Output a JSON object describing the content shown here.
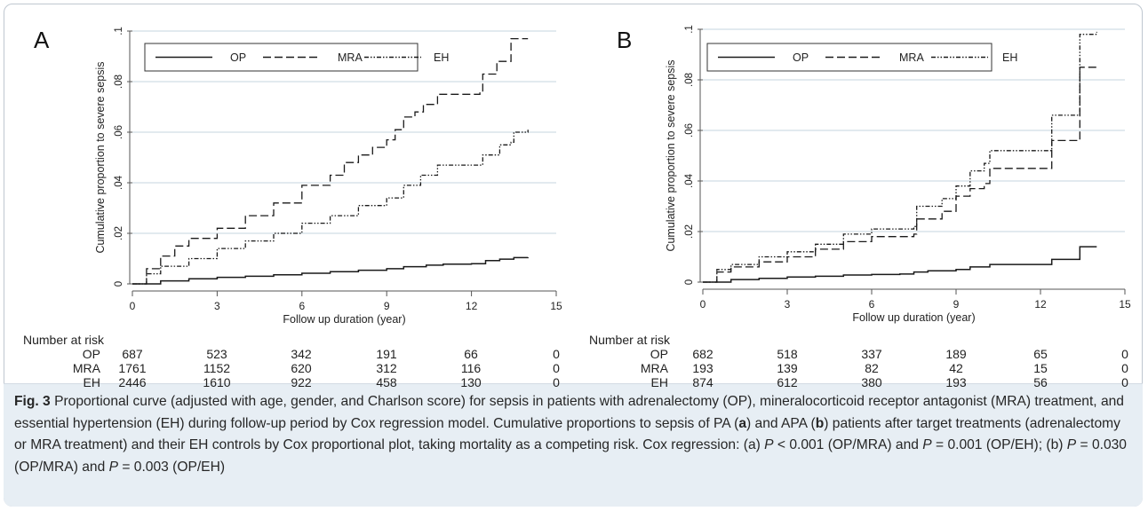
{
  "colors": {
    "line": "#1a1a1a",
    "grid": "#d9e4ea",
    "axis": "#555555",
    "caption_bg": "#e7eef4"
  },
  "chart_data": [
    {
      "panel_label": "A",
      "type": "line",
      "xlabel": "Follow up duration (year)",
      "ylabel": "Cumulative proportion to severe sepsis",
      "xlim": [
        0,
        15
      ],
      "ylim": [
        0,
        0.1
      ],
      "x_ticks": [
        "0",
        "3",
        "6",
        "9",
        "12",
        "15"
      ],
      "y_ticks": [
        "0",
        ".02",
        ".04",
        ".06",
        ".08",
        ".1"
      ],
      "grid": true,
      "legend_position": "top-left",
      "series": [
        {
          "name": "OP",
          "style": "solid",
          "points": [
            [
              0,
              0
            ],
            [
              1,
              0.0012
            ],
            [
              2,
              0.002
            ],
            [
              3,
              0.0026
            ],
            [
              4,
              0.003
            ],
            [
              5,
              0.0036
            ],
            [
              6,
              0.0042
            ],
            [
              7,
              0.0048
            ],
            [
              8,
              0.0054
            ],
            [
              9,
              0.006
            ],
            [
              9.6,
              0.0068
            ],
            [
              10.4,
              0.0074
            ],
            [
              11,
              0.0078
            ],
            [
              12,
              0.008
            ],
            [
              12.5,
              0.0092
            ],
            [
              13,
              0.0098
            ],
            [
              13.5,
              0.0104
            ],
            [
              14,
              0.0105
            ]
          ]
        },
        {
          "name": "MRA",
          "style": "dashed",
          "points": [
            [
              0,
              0
            ],
            [
              0.5,
              0.006
            ],
            [
              1,
              0.011
            ],
            [
              1.5,
              0.015
            ],
            [
              2,
              0.018
            ],
            [
              3,
              0.022
            ],
            [
              4,
              0.027
            ],
            [
              5,
              0.032
            ],
            [
              6,
              0.039
            ],
            [
              7,
              0.043
            ],
            [
              7.5,
              0.048
            ],
            [
              8,
              0.051
            ],
            [
              8.5,
              0.054
            ],
            [
              9,
              0.057
            ],
            [
              9.3,
              0.061
            ],
            [
              9.6,
              0.066
            ],
            [
              10,
              0.068
            ],
            [
              10.3,
              0.071
            ],
            [
              10.8,
              0.075
            ],
            [
              12.3,
              0.076
            ],
            [
              12.4,
              0.083
            ],
            [
              12.8,
              0.083
            ],
            [
              12.9,
              0.088
            ],
            [
              13.3,
              0.088
            ],
            [
              13.4,
              0.097
            ],
            [
              14,
              0.097
            ]
          ]
        },
        {
          "name": "EH",
          "style": "dashdot",
          "points": [
            [
              0,
              0
            ],
            [
              0.5,
              0.004
            ],
            [
              1,
              0.007
            ],
            [
              2,
              0.01
            ],
            [
              3,
              0.014
            ],
            [
              4,
              0.017
            ],
            [
              5,
              0.02
            ],
            [
              6,
              0.024
            ],
            [
              7,
              0.027
            ],
            [
              8,
              0.031
            ],
            [
              9,
              0.034
            ],
            [
              9.6,
              0.039
            ],
            [
              10.2,
              0.043
            ],
            [
              10.8,
              0.047
            ],
            [
              12.3,
              0.047
            ],
            [
              12.4,
              0.051
            ],
            [
              13,
              0.055
            ],
            [
              13.4,
              0.056
            ],
            [
              13.5,
              0.06
            ],
            [
              14,
              0.061
            ]
          ]
        }
      ],
      "risk_table": {
        "title": "Number at risk",
        "rows": [
          {
            "label": "OP",
            "values": [
              "687",
              "523",
              "342",
              "191",
              "66",
              "0"
            ]
          },
          {
            "label": "MRA",
            "values": [
              "1761",
              "1152",
              "620",
              "312",
              "116",
              "0"
            ]
          },
          {
            "label": "EH",
            "values": [
              "2446",
              "1610",
              "922",
              "458",
              "130",
              "0"
            ]
          }
        ]
      }
    },
    {
      "panel_label": "B",
      "type": "line",
      "xlabel": "Follow up duration (year)",
      "ylabel": "Cumulative proportion to severe sepsis",
      "xlim": [
        0,
        15
      ],
      "ylim": [
        0,
        0.1
      ],
      "x_ticks": [
        "0",
        "3",
        "6",
        "9",
        "12",
        "15"
      ],
      "y_ticks": [
        "0",
        ".02",
        ".04",
        ".06",
        ".08",
        ".1"
      ],
      "grid": true,
      "legend_position": "top-left",
      "series": [
        {
          "name": "OP",
          "style": "solid",
          "points": [
            [
              0,
              0
            ],
            [
              1,
              0.001
            ],
            [
              2,
              0.0015
            ],
            [
              3,
              0.002
            ],
            [
              4,
              0.0023
            ],
            [
              5,
              0.0028
            ],
            [
              6,
              0.003
            ],
            [
              7,
              0.0032
            ],
            [
              7.5,
              0.004
            ],
            [
              8,
              0.0045
            ],
            [
              9,
              0.005
            ],
            [
              9.5,
              0.006
            ],
            [
              10.2,
              0.007
            ],
            [
              12,
              0.007
            ],
            [
              12.4,
              0.009
            ],
            [
              13.3,
              0.009
            ],
            [
              13.4,
              0.014
            ],
            [
              14,
              0.014
            ]
          ]
        },
        {
          "name": "MRA",
          "style": "dashed",
          "points": [
            [
              0,
              0
            ],
            [
              0.5,
              0.004
            ],
            [
              1,
              0.006
            ],
            [
              2,
              0.008
            ],
            [
              3,
              0.01
            ],
            [
              4,
              0.013
            ],
            [
              5,
              0.016
            ],
            [
              6,
              0.018
            ],
            [
              7.5,
              0.019
            ],
            [
              7.6,
              0.025
            ],
            [
              8.5,
              0.028
            ],
            [
              9,
              0.034
            ],
            [
              9.5,
              0.037
            ],
            [
              10,
              0.039
            ],
            [
              10.2,
              0.045
            ],
            [
              12.3,
              0.045
            ],
            [
              12.4,
              0.056
            ],
            [
              13.3,
              0.056
            ],
            [
              13.4,
              0.085
            ],
            [
              14,
              0.085
            ]
          ]
        },
        {
          "name": "EH",
          "style": "dashdot",
          "points": [
            [
              0,
              0
            ],
            [
              0.5,
              0.005
            ],
            [
              1,
              0.007
            ],
            [
              2,
              0.01
            ],
            [
              3,
              0.012
            ],
            [
              4,
              0.015
            ],
            [
              5,
              0.019
            ],
            [
              6,
              0.021
            ],
            [
              7.5,
              0.022
            ],
            [
              7.6,
              0.03
            ],
            [
              8.5,
              0.033
            ],
            [
              9,
              0.038
            ],
            [
              9.5,
              0.044
            ],
            [
              10,
              0.047
            ],
            [
              10.2,
              0.052
            ],
            [
              12.3,
              0.052
            ],
            [
              12.4,
              0.066
            ],
            [
              13.3,
              0.066
            ],
            [
              13.4,
              0.098
            ],
            [
              14,
              0.099
            ]
          ]
        }
      ],
      "risk_table": {
        "title": "Number at risk",
        "rows": [
          {
            "label": "OP",
            "values": [
              "682",
              "518",
              "337",
              "189",
              "65",
              "0"
            ]
          },
          {
            "label": "MRA",
            "values": [
              "193",
              "139",
              "82",
              "42",
              "15",
              "0"
            ]
          },
          {
            "label": "EH",
            "values": [
              "874",
              "612",
              "380",
              "193",
              "56",
              "0"
            ]
          }
        ]
      }
    }
  ],
  "caption": {
    "fig_label": "Fig. 3",
    "part1": " Proportional curve (adjusted with age, gender, and Charlson score) for sepsis in patients with adrenalectomy (OP), mineralocorticoid receptor antagonist (MRA) treatment, and essential hypertension (EH) during follow-up period by Cox regression model. Cumulative proportions to sepsis of PA (",
    "a": "a",
    "part2": ") and APA (",
    "b": "b",
    "part3": ") patients after target treatments (adrenalectomy or MRA treatment) and their EH controls by Cox proportional plot, taking mortality as a competing risk. Cox regression: (a) ",
    "p1": "P",
    "v1": " < 0.001 (OP/MRA) and ",
    "p2": "P",
    "v2": " = 0.001 (OP/EH); (b) ",
    "p3": "P",
    "v3": " = 0.030 (OP/MRA) and ",
    "p4": "P",
    "v4": " = 0.003 (OP/EH)"
  }
}
